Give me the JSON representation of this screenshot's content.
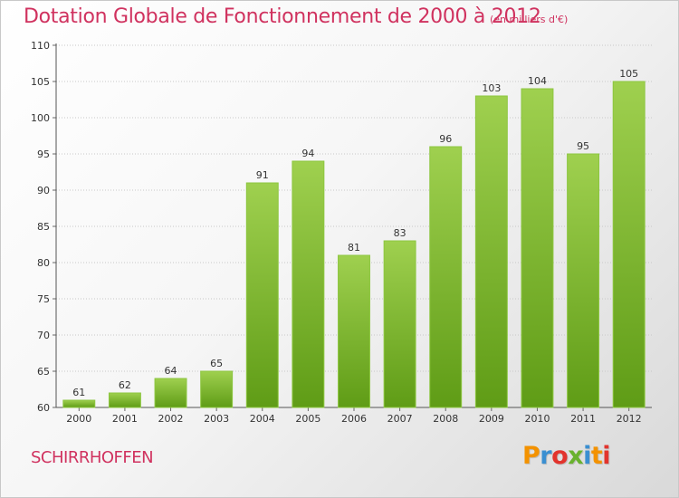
{
  "header": {
    "title": "Dotation Globale de Fonctionnement de 2000 à 2012",
    "unit_note": "(en milliers d'€)"
  },
  "footer": {
    "commune": "SCHIRRHOFFEN",
    "brand": "Proxiti"
  },
  "colors": {
    "accent": "#d0325f",
    "bar_light": "#9fd04f",
    "bar_dark": "#5f9c16",
    "brand_letters": [
      "#f39200",
      "#3a8fd1",
      "#e2342d",
      "#69b22e",
      "#3a8fd1",
      "#f39200",
      "#e2342d"
    ]
  },
  "chart_data": {
    "type": "bar",
    "categories": [
      "2000",
      "2001",
      "2002",
      "2003",
      "2004",
      "2005",
      "2006",
      "2007",
      "2008",
      "2009",
      "2010",
      "2011",
      "2012"
    ],
    "values": [
      61,
      62,
      64,
      65,
      91,
      94,
      81,
      83,
      96,
      103,
      104,
      95,
      105
    ],
    "ylim": [
      60,
      110
    ],
    "yticks": [
      60,
      65,
      70,
      75,
      80,
      85,
      90,
      95,
      100,
      105,
      110
    ],
    "grid": true,
    "data_labels": true
  }
}
